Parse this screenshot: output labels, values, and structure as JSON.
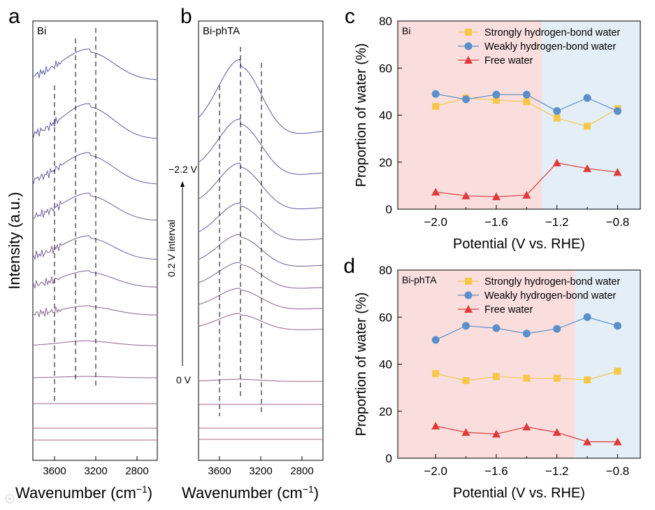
{
  "figure": {
    "colors": {
      "strong": "#f5c84c",
      "weak": "#5b8fc9",
      "free": "#e0393a",
      "pink_region": "#fadede",
      "blue_region": "#e4eef7",
      "spectrum_top": "#5656a6",
      "spectrum_bottom": "#b06a78"
    },
    "watermark_icon": "chat-bubble-icon"
  },
  "panel_a": {
    "letter": "a",
    "tag": "Bi",
    "ylabel": "Intensity (a.u.)",
    "xlabel_main": "Wavenumber (cm",
    "xlabel_sup": "−1",
    "xlabel_end": ")",
    "xticks": [
      "3600",
      "3200",
      "2800"
    ]
  },
  "panel_b": {
    "letter": "b",
    "tag": "Bi-phTA",
    "xlabel_main": "Wavenumber (cm",
    "xlabel_sup": "−1",
    "xlabel_end": ")",
    "xticks": [
      "3600",
      "3200",
      "2800"
    ],
    "label_top": "−2.2 V",
    "label_bottom": "0 V",
    "label_interval": "0.2 V interval"
  },
  "chart_data": [
    {
      "type": "line",
      "panel": "c",
      "tag": "Bi",
      "xlabel": "Potential (V vs. RHE)",
      "ylabel": "Proportion of water (%)",
      "xlim": [
        -2.25,
        -0.65
      ],
      "ylim": [
        0,
        80
      ],
      "xticks": [
        "−2.0",
        "−1.6",
        "−1.2",
        "−0.8"
      ],
      "yticks": [
        "0",
        "20",
        "40",
        "60",
        "80"
      ],
      "region_boundary": -1.3,
      "legend_position": "top-right",
      "x": [
        -2.0,
        -1.8,
        -1.6,
        -1.4,
        -1.2,
        -1.0,
        -0.8
      ],
      "series": [
        {
          "name": "Strongly hydrogen-bond water",
          "marker": "square",
          "values": [
            43.7,
            47.3,
            46.3,
            45.7,
            38.7,
            35.3,
            42.7
          ]
        },
        {
          "name": "Weakly hydrogen-bond water",
          "marker": "circle",
          "values": [
            49.0,
            46.7,
            48.7,
            48.7,
            41.7,
            47.3,
            41.7
          ]
        },
        {
          "name": "Free water",
          "marker": "triangle",
          "values": [
            7.3,
            5.7,
            5.3,
            6.0,
            19.7,
            17.3,
            15.7
          ]
        }
      ]
    },
    {
      "type": "line",
      "panel": "d",
      "tag": "Bi-phTA",
      "xlabel": "Potential (V vs. RHE)",
      "ylabel": "Proportion of water (%)",
      "xlim": [
        -2.25,
        -0.65
      ],
      "ylim": [
        0,
        80
      ],
      "xticks": [
        "−2.0",
        "−1.6",
        "−1.2",
        "−0.8"
      ],
      "yticks": [
        "0",
        "20",
        "40",
        "60",
        "80"
      ],
      "region_boundary": -1.08,
      "legend_position": "top-right",
      "x": [
        -2.0,
        -1.8,
        -1.6,
        -1.4,
        -1.2,
        -1.0,
        -0.8
      ],
      "series": [
        {
          "name": "Strongly hydrogen-bond water",
          "marker": "square",
          "values": [
            36.0,
            33.0,
            34.7,
            34.0,
            34.0,
            33.3,
            37.0
          ]
        },
        {
          "name": "Weakly hydrogen-bond water",
          "marker": "circle",
          "values": [
            50.3,
            56.3,
            55.3,
            53.0,
            55.0,
            60.0,
            56.3
          ]
        },
        {
          "name": "Free water",
          "marker": "triangle",
          "values": [
            13.7,
            11.0,
            10.3,
            13.3,
            11.0,
            7.0,
            7.0
          ]
        }
      ]
    }
  ]
}
